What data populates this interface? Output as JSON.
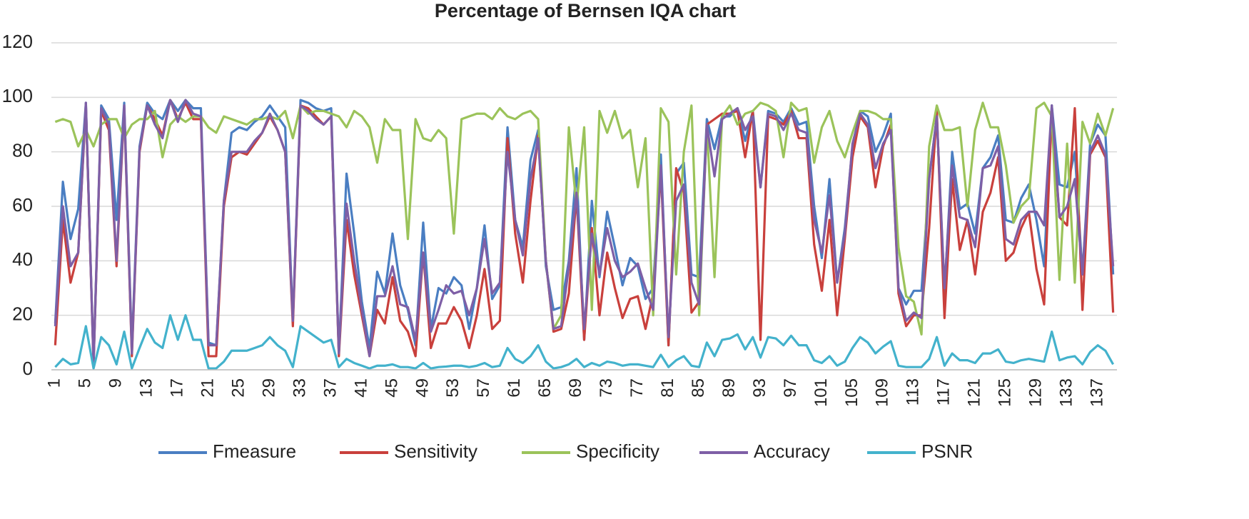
{
  "chart_data": {
    "type": "line",
    "title": "Percentage of Bernsen IQA chart",
    "categories": [
      1,
      null,
      null,
      null,
      5,
      null,
      null,
      null,
      9,
      null,
      null,
      null,
      13,
      null,
      null,
      null,
      17,
      null,
      null,
      null,
      21,
      null,
      null,
      null,
      25,
      null,
      null,
      null,
      29,
      null,
      null,
      null,
      33,
      null,
      null,
      null,
      37,
      null,
      null,
      null,
      41,
      null,
      null,
      null,
      45,
      null,
      null,
      null,
      49,
      null,
      null,
      null,
      53,
      null,
      null,
      null,
      57,
      null,
      null,
      null,
      61,
      null,
      null,
      null,
      65,
      null,
      null,
      null,
      69,
      null,
      null,
      null,
      73,
      null,
      null,
      null,
      77,
      null,
      null,
      null,
      81,
      null,
      null,
      null,
      85,
      null,
      null,
      null,
      89,
      null,
      null,
      null,
      93,
      null,
      null,
      null,
      97,
      null,
      null,
      null,
      101,
      null,
      null,
      null,
      105,
      null,
      null,
      null,
      109,
      null,
      null,
      null,
      113,
      null,
      null,
      null,
      117,
      null,
      null,
      null,
      121,
      null,
      null,
      null,
      125,
      null,
      null,
      null,
      129,
      null,
      null,
      null,
      133,
      null,
      null,
      null,
      137,
      null,
      null
    ],
    "ylim": [
      0,
      120
    ],
    "yticks": [
      0,
      20,
      40,
      60,
      80,
      100,
      120
    ],
    "grid": true,
    "legend": "bottom",
    "series": [
      {
        "name": "Fmeasure",
        "color": "#4a7ec2",
        "values": [
          17,
          69,
          48,
          59,
          98,
          3,
          97,
          92,
          55,
          98,
          8,
          82,
          98,
          94,
          92,
          99,
          95,
          99,
          96,
          96,
          10,
          9,
          62,
          87,
          89,
          88,
          91,
          93,
          97,
          93,
          89,
          18,
          99,
          98,
          96,
          95,
          96,
          6,
          72,
          50,
          25,
          8,
          36,
          28,
          50,
          31,
          22,
          9,
          54,
          15,
          30,
          28,
          34,
          31,
          15,
          30,
          53,
          26,
          31,
          89,
          55,
          45,
          77,
          88,
          38,
          22,
          23,
          40,
          74,
          11,
          62,
          34,
          58,
          45,
          31,
          41,
          38,
          26,
          30,
          79,
          9,
          72,
          76,
          35,
          34,
          92,
          81,
          93,
          93,
          96,
          84,
          95,
          67,
          95,
          94,
          91,
          96,
          90,
          91,
          60,
          41,
          70,
          32,
          52,
          82,
          95,
          93,
          80,
          86,
          94,
          30,
          24,
          29,
          29,
          70,
          93,
          28,
          80,
          59,
          61,
          50,
          74,
          78,
          86,
          55,
          54,
          63,
          68,
          55,
          38,
          97,
          68,
          67,
          80,
          35,
          83,
          90,
          86,
          35
        ]
      },
      {
        "name": "Sensitivity",
        "color": "#c9403c",
        "values": [
          9,
          55,
          32,
          43,
          97,
          2,
          95,
          88,
          38,
          96,
          5,
          80,
          97,
          92,
          86,
          99,
          92,
          98,
          92,
          92,
          5,
          5,
          60,
          78,
          80,
          79,
          83,
          87,
          93,
          88,
          80,
          16,
          97,
          96,
          93,
          90,
          93,
          5,
          55,
          35,
          20,
          5,
          22,
          17,
          34,
          18,
          14,
          5,
          43,
          8,
          17,
          17,
          23,
          18,
          8,
          20,
          37,
          15,
          18,
          85,
          50,
          32,
          62,
          86,
          40,
          14,
          15,
          28,
          64,
          11,
          52,
          20,
          43,
          30,
          19,
          26,
          27,
          15,
          28,
          73,
          9,
          74,
          65,
          21,
          25,
          90,
          92,
          94,
          94,
          95,
          78,
          95,
          11,
          93,
          92,
          90,
          95,
          85,
          85,
          46,
          29,
          55,
          20,
          48,
          78,
          93,
          89,
          67,
          82,
          90,
          28,
          16,
          20,
          20,
          52,
          95,
          19,
          70,
          44,
          55,
          35,
          58,
          65,
          78,
          40,
          43,
          52,
          58,
          37,
          24,
          95,
          56,
          53,
          96,
          22,
          79,
          84,
          78,
          21
        ]
      },
      {
        "name": "Specificity",
        "color": "#9bc35a",
        "values": [
          91,
          92,
          91,
          82,
          88,
          82,
          90,
          92,
          92,
          85,
          90,
          92,
          92,
          95,
          78,
          90,
          93,
          91,
          93,
          93,
          89,
          87,
          93,
          92,
          91,
          90,
          92,
          92,
          93,
          92,
          95,
          85,
          97,
          94,
          95,
          95,
          94,
          93,
          89,
          95,
          93,
          89,
          76,
          92,
          88,
          88,
          48,
          92,
          85,
          84,
          88,
          85,
          50,
          92,
          93,
          94,
          94,
          92,
          96,
          93,
          92,
          94,
          95,
          92,
          40,
          15,
          20,
          89,
          60,
          89,
          22,
          95,
          87,
          95,
          85,
          88,
          67,
          85,
          20,
          96,
          91,
          35,
          80,
          97,
          20,
          90,
          34,
          93,
          97,
          90,
          94,
          95,
          98,
          97,
          95,
          78,
          98,
          95,
          96,
          76,
          89,
          95,
          84,
          78,
          87,
          95,
          95,
          94,
          92,
          92,
          45,
          27,
          25,
          13,
          82,
          97,
          88,
          88,
          89,
          60,
          88,
          98,
          89,
          89,
          75,
          54,
          60,
          63,
          96,
          98,
          93,
          33,
          83,
          32,
          91,
          83,
          94,
          86,
          96
        ]
      },
      {
        "name": "Accuracy",
        "color": "#7e5fa6",
        "values": [
          16,
          60,
          38,
          43,
          98,
          2,
          96,
          90,
          40,
          97,
          6,
          81,
          97,
          90,
          85,
          99,
          91,
          99,
          94,
          93,
          9,
          9,
          62,
          80,
          80,
          80,
          84,
          87,
          94,
          88,
          80,
          18,
          97,
          95,
          92,
          90,
          93,
          6,
          61,
          40,
          22,
          5,
          27,
          27,
          38,
          24,
          23,
          11,
          43,
          14,
          22,
          31,
          28,
          29,
          20,
          30,
          48,
          28,
          32,
          80,
          55,
          42,
          70,
          85,
          40,
          15,
          16,
          38,
          65,
          15,
          50,
          35,
          52,
          40,
          34,
          36,
          39,
          30,
          22,
          75,
          12,
          62,
          68,
          32,
          24,
          90,
          71,
          92,
          94,
          96,
          88,
          93,
          67,
          94,
          93,
          88,
          94,
          88,
          87,
          55,
          43,
          64,
          32,
          50,
          83,
          94,
          90,
          74,
          83,
          88,
          30,
          18,
          21,
          19,
          70,
          93,
          30,
          75,
          56,
          55,
          45,
          74,
          75,
          82,
          48,
          46,
          55,
          58,
          58,
          53,
          97,
          56,
          60,
          70,
          35,
          80,
          86,
          79,
          38
        ]
      },
      {
        "name": "PSNR",
        "color": "#43b2cc",
        "values": [
          1,
          4,
          2,
          2.5,
          16,
          0.5,
          12,
          9,
          2,
          14,
          0.5,
          8,
          15,
          10,
          8,
          20,
          11,
          20,
          11,
          11,
          0.5,
          0.5,
          3,
          7,
          7,
          7,
          8,
          9,
          12,
          9,
          7,
          1,
          16,
          14,
          12,
          10,
          11,
          1,
          4,
          2.5,
          1.5,
          0.5,
          1.5,
          1.5,
          2,
          1,
          1,
          0.5,
          2.5,
          0.5,
          1,
          1.2,
          1.5,
          1.5,
          1,
          1.5,
          2.5,
          1,
          1.5,
          8,
          4,
          2.5,
          5,
          9,
          3,
          0.5,
          1,
          2,
          4,
          1,
          2.5,
          1.5,
          3,
          2.5,
          1.5,
          2,
          2,
          1.5,
          1,
          5.5,
          1,
          3.5,
          5,
          1.5,
          1,
          10,
          5,
          11,
          11.5,
          13,
          7.5,
          12,
          4.5,
          12,
          11.5,
          9,
          12.5,
          9,
          9,
          3.5,
          2.5,
          5,
          1.5,
          3,
          8,
          12,
          10,
          6,
          8.5,
          10.5,
          1.5,
          1,
          1,
          1,
          4,
          12,
          1.5,
          6,
          3.5,
          3.5,
          2.5,
          6,
          6,
          7.5,
          3,
          2.5,
          3.5,
          4,
          3.5,
          3,
          14,
          3.5,
          4.5,
          5,
          2,
          6.5,
          9,
          7,
          2
        ]
      }
    ]
  }
}
